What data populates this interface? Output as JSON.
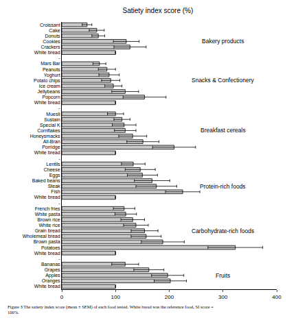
{
  "chart_data": {
    "type": "bar",
    "orientation": "horizontal",
    "title": "Satiety index score (%)",
    "caption": [
      "Figure 3 The satiety index score (mean ± SEM) of each food tested. White bread was the reference food, SI score =",
      "100%."
    ],
    "categories": [
      "Croissant",
      "Cake",
      "Donuts",
      "Cookies",
      "Crackers",
      "White bread",
      "-",
      "Mars Bar",
      "Peanuts",
      "Yoghurt",
      "Potato chips",
      "Ice cream",
      "Jellybeans",
      "Popcorn",
      "White bread",
      "-",
      "Muesli",
      "Sustain",
      "Special K",
      "Cornflakes",
      "Honeysmacks",
      "All-Bran",
      "Porridge",
      "White bread",
      "-",
      "Lentils",
      "Cheese",
      "Eggs",
      "Baked beans",
      "Steak",
      "Fish",
      "White bread",
      "-",
      "French fries",
      "White pasta",
      "Brown rice",
      "White rice",
      "Grain bread",
      "Wholemeal bread",
      "Brown pasta",
      "Potatoes",
      "White bread",
      "-",
      "Bananas",
      "Grapes",
      "Apples",
      "Oranges",
      "White bread"
    ],
    "values": [
      47,
      65,
      68,
      120,
      127,
      100,
      null,
      70,
      84,
      88,
      91,
      96,
      118,
      154,
      100,
      null,
      100,
      112,
      116,
      118,
      132,
      151,
      209,
      100,
      null,
      133,
      146,
      150,
      168,
      176,
      225,
      100,
      null,
      116,
      119,
      132,
      138,
      154,
      157,
      188,
      323,
      100,
      null,
      118,
      162,
      197,
      202,
      100
    ],
    "error": [
      9,
      14,
      12,
      24,
      30,
      0,
      null,
      12,
      16,
      19,
      17,
      16,
      25,
      40,
      0,
      null,
      15,
      15,
      22,
      20,
      26,
      30,
      40,
      0,
      null,
      22,
      28,
      28,
      33,
      38,
      32,
      0,
      null,
      20,
      20,
      22,
      23,
      25,
      28,
      40,
      51,
      0,
      null,
      25,
      28,
      30,
      30,
      0
    ],
    "color": "#c8c8c8",
    "xlim": [
      0,
      400
    ],
    "xticks": [
      0,
      100,
      200,
      300,
      400
    ],
    "grid": false,
    "annotations": [
      {
        "text": "Bakery products",
        "x": 300,
        "y": 3
      },
      {
        "text": "Snacks & Confectionery",
        "x": 300,
        "y": 10
      },
      {
        "text": "Breakfast cereals",
        "x": 300,
        "y": 19
      },
      {
        "text": "Protein-rich foods",
        "x": 300,
        "y": 29
      },
      {
        "text": "Carbohydrate-rich foods",
        "x": 300,
        "y": 37
      },
      {
        "text": "Fruits",
        "x": 300,
        "y": 45
      }
    ]
  }
}
